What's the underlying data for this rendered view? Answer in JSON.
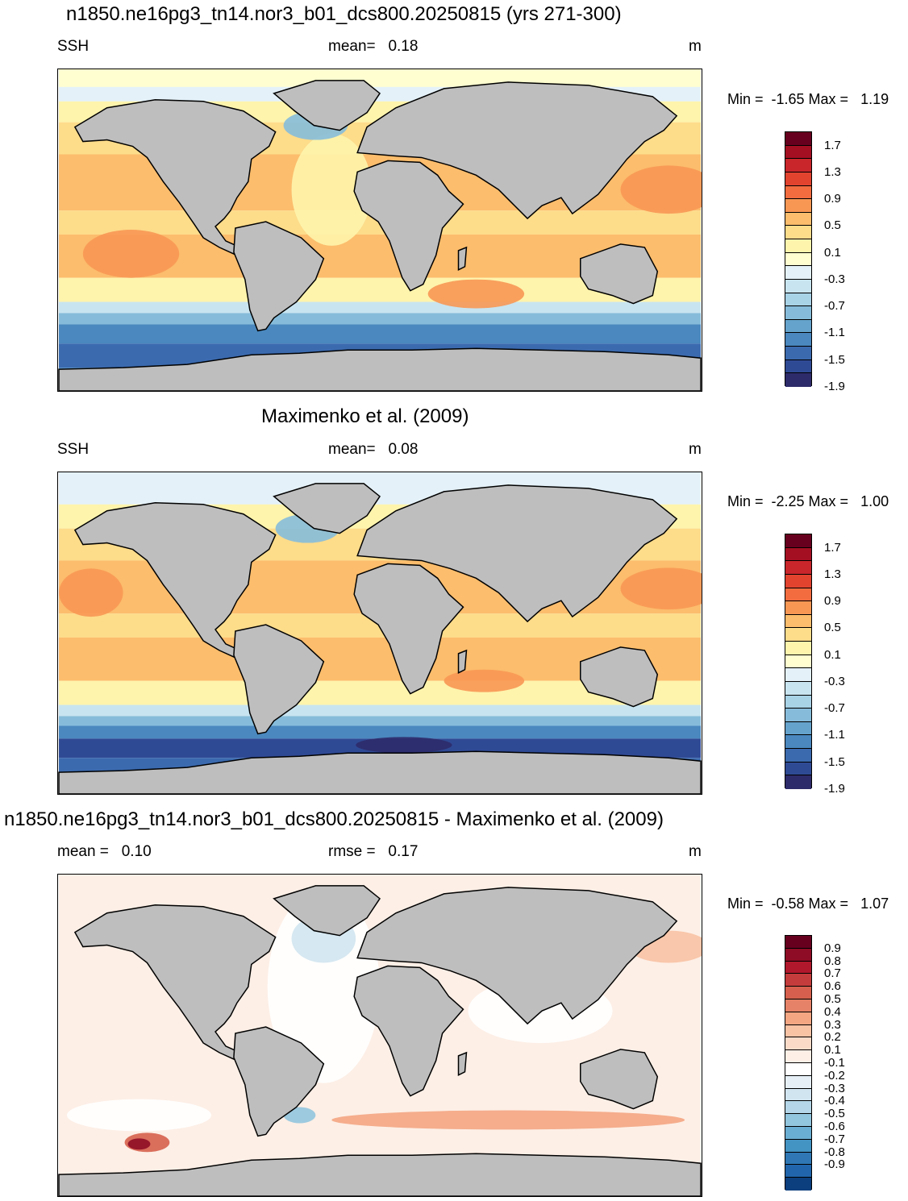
{
  "panels": [
    {
      "title": "n1850.ne16pg3_tn14.nor3_b01_dcs800.20250815 (yrs 271-300)",
      "left_label": "SSH",
      "center_label": "mean=   0.18",
      "units": "m",
      "minmax": "Min =  -1.65 Max =   1.19",
      "variant": "model",
      "colorbar_ticks": [
        "1.7",
        "1.3",
        "0.9",
        "0.5",
        "0.1",
        "-0.3",
        "-0.7",
        "-1.1",
        "-1.5",
        "-1.9"
      ],
      "colorbar_colors": [
        "#67001f",
        "#a50f22",
        "#c9262b",
        "#e2432f",
        "#f26c3f",
        "#f89754",
        "#fcbd6c",
        "#fddc8a",
        "#fef4ac",
        "#fefed0",
        "#e4f1f8",
        "#c8e4f0",
        "#a8d2e6",
        "#86bcda",
        "#65a3cc",
        "#4a88bf",
        "#3b6aaf",
        "#2f4a95",
        "#2e2b6a"
      ]
    },
    {
      "title": "Maximenko et al. (2009)",
      "left_label": "SSH",
      "center_label": "mean=   0.08",
      "units": "m",
      "minmax": "Min =  -2.25 Max =   1.00",
      "variant": "obs",
      "colorbar_ticks": [
        "1.7",
        "1.3",
        "0.9",
        "0.5",
        "0.1",
        "-0.3",
        "-0.7",
        "-1.1",
        "-1.5",
        "-1.9"
      ],
      "colorbar_colors": [
        "#67001f",
        "#a50f22",
        "#c9262b",
        "#e2432f",
        "#f26c3f",
        "#f89754",
        "#fcbd6c",
        "#fddc8a",
        "#fef4ac",
        "#fefed0",
        "#e4f1f8",
        "#c8e4f0",
        "#a8d2e6",
        "#86bcda",
        "#65a3cc",
        "#4a88bf",
        "#3b6aaf",
        "#2f4a95",
        "#2e2b6a"
      ]
    },
    {
      "title": "n1850.ne16pg3_tn14.nor3_b01_dcs800.20250815 - Maximenko et al. (2009)",
      "left_label": "mean =   0.10",
      "center_label": "rmse =   0.17",
      "units": "m",
      "minmax": "Min =  -0.58 Max =   1.07",
      "variant": "diff",
      "colorbar_ticks": [
        "0.9",
        "0.8",
        "0.7",
        "0.6",
        "0.5",
        "0.4",
        "0.3",
        "0.2",
        "0.1",
        "-0.1",
        "-0.2",
        "-0.3",
        "-0.4",
        "-0.5",
        "-0.6",
        "-0.7",
        "-0.8",
        "-0.9"
      ],
      "colorbar_colors": [
        "#67001f",
        "#8e0c25",
        "#b2182b",
        "#c53c3c",
        "#d6604d",
        "#e58267",
        "#f4a582",
        "#f8c2a4",
        "#fbdbc8",
        "#fdefe6",
        "#ffffff",
        "#e6eff6",
        "#d1e5f0",
        "#b4d6e8",
        "#92c5de",
        "#6aaed3",
        "#4393c3",
        "#2f78b5",
        "#2166ac",
        "#0b3f7e"
      ]
    }
  ]
}
